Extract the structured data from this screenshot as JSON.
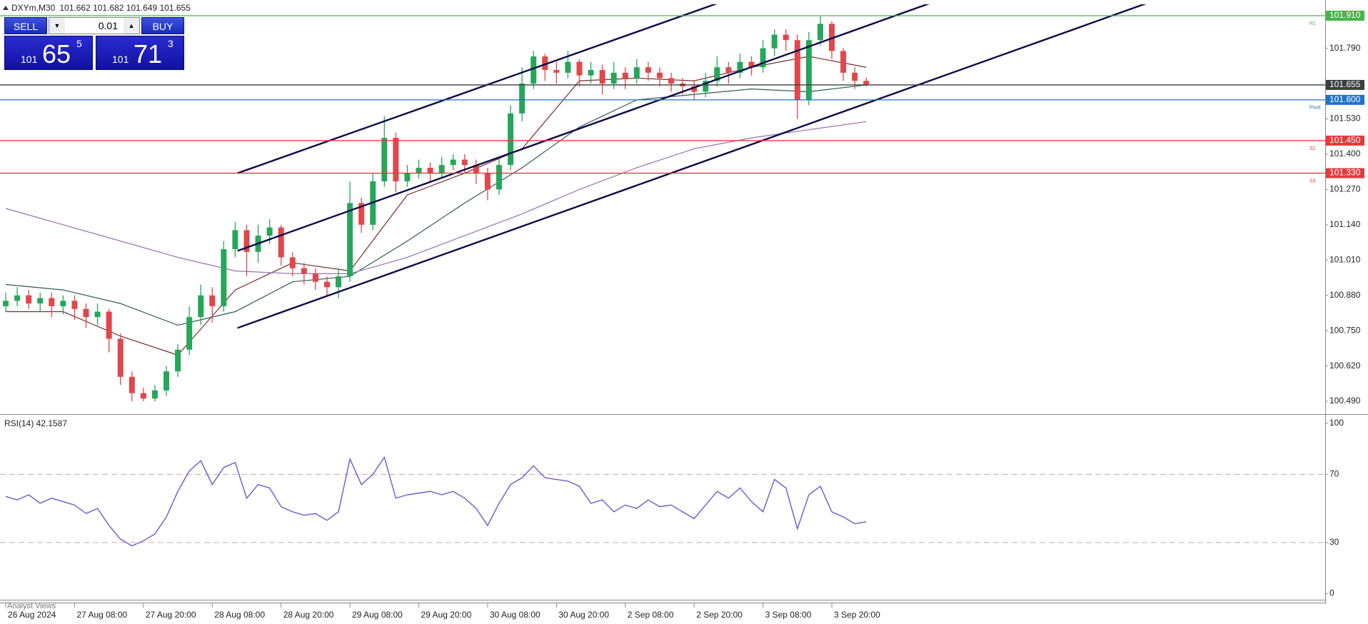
{
  "chart_data": [
    {
      "type": "candlestick",
      "title": "DXYm,M30",
      "subtitle": "101.662 101.682 101.649 101.655",
      "up_color": "#26a65b",
      "down_color": "#e0474c",
      "open": [
        100.84,
        100.86,
        100.88,
        100.85,
        100.87,
        100.84,
        100.86,
        100.83,
        100.8,
        100.82,
        100.72,
        100.58,
        100.52,
        100.5,
        100.53,
        100.6,
        100.68,
        100.8,
        100.88,
        100.84,
        101.05,
        101.12,
        101.04,
        101.1,
        101.13,
        101.02,
        100.98,
        100.96,
        100.93,
        100.91,
        100.95,
        101.22,
        101.14,
        101.3,
        101.46,
        101.3,
        101.33,
        101.35,
        101.33,
        101.36,
        101.38,
        101.36,
        101.33,
        101.27,
        101.36,
        101.55,
        101.66,
        101.76,
        101.71,
        101.7,
        101.74,
        101.69,
        101.71,
        101.66,
        101.7,
        101.68,
        101.72,
        101.7,
        101.68,
        101.66,
        101.65,
        101.63,
        101.67,
        101.72,
        101.7,
        101.74,
        101.72,
        101.79,
        101.84,
        101.82,
        101.6,
        101.82,
        101.88,
        101.78,
        101.7,
        101.67
      ],
      "high": [
        100.89,
        100.91,
        100.9,
        100.89,
        100.89,
        100.88,
        100.88,
        100.85,
        100.85,
        100.83,
        100.74,
        100.6,
        100.54,
        100.55,
        100.62,
        100.7,
        100.84,
        100.92,
        100.91,
        101.08,
        101.15,
        101.14,
        101.14,
        101.16,
        101.14,
        101.04,
        101.0,
        100.98,
        100.95,
        100.98,
        101.3,
        101.24,
        101.33,
        101.54,
        101.48,
        101.36,
        101.38,
        101.37,
        101.39,
        101.4,
        101.4,
        101.38,
        101.35,
        101.39,
        101.58,
        101.72,
        101.78,
        101.77,
        101.74,
        101.78,
        101.75,
        101.74,
        101.73,
        101.74,
        101.72,
        101.75,
        101.74,
        101.72,
        101.7,
        101.68,
        101.67,
        101.7,
        101.76,
        101.74,
        101.77,
        101.76,
        101.82,
        101.86,
        101.86,
        101.84,
        101.85,
        101.91,
        101.89,
        101.79,
        101.72,
        101.682
      ],
      "low": [
        100.82,
        100.84,
        100.83,
        100.82,
        100.8,
        100.81,
        100.79,
        100.76,
        100.77,
        100.67,
        100.55,
        100.49,
        100.49,
        100.49,
        100.51,
        100.58,
        100.66,
        100.77,
        100.78,
        100.82,
        101.02,
        100.95,
        101.0,
        101.07,
        100.99,
        100.95,
        100.92,
        100.9,
        100.88,
        100.87,
        100.93,
        101.11,
        101.12,
        101.28,
        101.26,
        101.28,
        101.31,
        101.3,
        101.31,
        101.34,
        101.33,
        101.29,
        101.23,
        101.25,
        101.34,
        101.52,
        101.64,
        101.67,
        101.66,
        101.68,
        101.65,
        101.66,
        101.62,
        101.64,
        101.64,
        101.66,
        101.67,
        101.65,
        101.63,
        101.62,
        101.6,
        101.61,
        101.65,
        101.66,
        101.68,
        101.69,
        101.7,
        101.76,
        101.78,
        101.53,
        101.58,
        101.8,
        101.75,
        101.67,
        101.64,
        101.649
      ],
      "close": [
        100.86,
        100.88,
        100.85,
        100.87,
        100.84,
        100.86,
        100.83,
        100.8,
        100.82,
        100.72,
        100.58,
        100.52,
        100.5,
        100.53,
        100.6,
        100.68,
        100.8,
        100.88,
        100.84,
        101.05,
        101.12,
        101.04,
        101.1,
        101.13,
        101.02,
        100.98,
        100.96,
        100.93,
        100.91,
        100.95,
        101.22,
        101.14,
        101.3,
        101.46,
        101.3,
        101.33,
        101.35,
        101.33,
        101.36,
        101.38,
        101.36,
        101.33,
        101.27,
        101.36,
        101.55,
        101.66,
        101.76,
        101.71,
        101.7,
        101.74,
        101.69,
        101.71,
        101.66,
        101.7,
        101.68,
        101.72,
        101.7,
        101.68,
        101.66,
        101.65,
        101.63,
        101.67,
        101.72,
        101.7,
        101.74,
        101.72,
        101.79,
        101.84,
        101.82,
        101.6,
        101.82,
        101.88,
        101.78,
        101.7,
        101.67,
        101.655
      ],
      "moving_averages": [
        {
          "color": "#7a2b2b",
          "x": [
            0,
            5,
            10,
            15,
            20,
            25,
            30,
            35,
            40,
            45,
            50,
            55,
            60,
            65,
            70,
            75
          ],
          "values": [
            100.82,
            100.82,
            100.73,
            100.66,
            100.9,
            101.0,
            100.97,
            101.25,
            101.33,
            101.42,
            101.67,
            101.68,
            101.67,
            101.72,
            101.76,
            101.72
          ]
        },
        {
          "color": "#2f5a5a",
          "x": [
            0,
            5,
            10,
            15,
            20,
            25,
            30,
            35,
            40,
            45,
            50,
            55,
            60,
            65,
            70,
            75
          ],
          "values": [
            100.92,
            100.9,
            100.85,
            100.77,
            100.82,
            100.93,
            100.95,
            101.08,
            101.22,
            101.35,
            101.5,
            101.6,
            101.62,
            101.64,
            101.63,
            101.655
          ]
        },
        {
          "color": "#9a6fb0",
          "x": [
            0,
            5,
            10,
            15,
            20,
            25,
            30,
            35,
            40,
            45,
            50,
            55,
            60,
            65,
            70,
            75
          ],
          "values": [
            101.2,
            101.14,
            101.08,
            101.02,
            100.97,
            100.96,
            100.96,
            101.02,
            101.1,
            101.18,
            101.27,
            101.35,
            101.42,
            101.46,
            101.49,
            101.52
          ]
        }
      ],
      "trendline_color": "#0b0b4a",
      "trendlines": [
        {
          "x": [
            20.2,
            62.2
          ],
          "y": [
            101.33,
            101.958
          ]
        },
        {
          "x": [
            20.2,
            80.7
          ],
          "y": [
            101.044,
            101.958
          ]
        },
        {
          "x": [
            20.2,
            99.6
          ],
          "y": [
            100.76,
            101.958
          ]
        }
      ],
      "levels": [
        {
          "name": "R1",
          "value": 101.91,
          "label": "101.910",
          "color": "#45b649"
        },
        {
          "name": "Pivot",
          "value": 101.6,
          "label": "101.600",
          "color": "#1e73c8"
        },
        {
          "name": "S2",
          "value": 101.45,
          "label": "101.450",
          "color": "#e03c3c"
        },
        {
          "name": "S3",
          "value": 101.33,
          "label": "101.330",
          "color": "#e03c3c"
        }
      ],
      "current_price": {
        "value": 101.655,
        "label": "101.655",
        "color": "#3a3f3f"
      },
      "xlim": [
        -0.5,
        115
      ],
      "xticks": [
        {
          "value": 0,
          "label": "26 Aug 2024"
        },
        {
          "value": 6,
          "label": "27 Aug 08:00"
        },
        {
          "value": 12,
          "label": "27 Aug 20:00"
        },
        {
          "value": 18,
          "label": "28 Aug 08:00"
        },
        {
          "value": 24,
          "label": "28 Aug 20:00"
        },
        {
          "value": 30,
          "label": "29 Aug 08:00"
        },
        {
          "value": 36,
          "label": "29 Aug 20:00"
        },
        {
          "value": 42,
          "label": "30 Aug 08:00"
        },
        {
          "value": 48,
          "label": "30 Aug 20:00"
        },
        {
          "value": 54,
          "label": "2 Sep 08:00"
        },
        {
          "value": 60,
          "label": "2 Sep 20:00"
        },
        {
          "value": 66,
          "label": "3 Sep 08:00"
        },
        {
          "value": 72,
          "label": "3 Sep 20:00"
        }
      ],
      "ylim": [
        100.448,
        101.952
      ],
      "yticks": [
        {
          "value": 100.49,
          "label": "100.490"
        },
        {
          "value": 100.62,
          "label": "100.620"
        },
        {
          "value": 100.75,
          "label": "100.750"
        },
        {
          "value": 100.88,
          "label": "100.880"
        },
        {
          "value": 101.01,
          "label": "101.010"
        },
        {
          "value": 101.14,
          "label": "101.140"
        },
        {
          "value": 101.27,
          "label": "101.270"
        },
        {
          "value": 101.4,
          "label": "101.400"
        },
        {
          "value": 101.53,
          "label": "101.530"
        },
        {
          "value": 101.79,
          "label": "101.790"
        }
      ]
    },
    {
      "type": "line",
      "title": "RSI(14) 42.1587",
      "color": "#6a5acd",
      "values": [
        57,
        55,
        58,
        53,
        56,
        54,
        52,
        47,
        50,
        40,
        32,
        28,
        31,
        35,
        45,
        60,
        72,
        78,
        64,
        74,
        77,
        56,
        64,
        62,
        51,
        48,
        46,
        47,
        43,
        48,
        79,
        64,
        70,
        80,
        56,
        58,
        59,
        60,
        58,
        60,
        56,
        50,
        40,
        53,
        64,
        68,
        75,
        68,
        67,
        66,
        63,
        53,
        55,
        48,
        52,
        50,
        55,
        51,
        52,
        48,
        44,
        52,
        60,
        56,
        62,
        54,
        48,
        67,
        62,
        38,
        58,
        63,
        48,
        45,
        41,
        42.1587
      ],
      "ylim": [
        -3.6,
        104.1
      ],
      "yticks": [
        0,
        30,
        70,
        100
      ],
      "levels": [
        30,
        70
      ]
    }
  ],
  "trade_panel": {
    "sell": "SELL",
    "buy": "BUY",
    "lot": "0.01",
    "bid": {
      "big": "101",
      "pips": "65",
      "point": "5"
    },
    "ask": {
      "big": "101",
      "pips": "71",
      "point": "3"
    }
  },
  "footer_tab": "Analyst Views"
}
